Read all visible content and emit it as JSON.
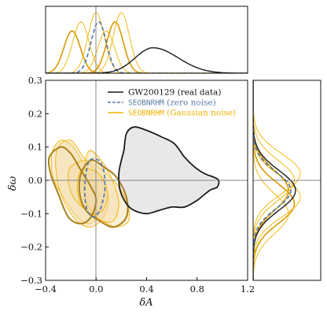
{
  "chart_data": {
    "type": "contour",
    "xlabel": "δA",
    "ylabel": "δω",
    "xlim": [
      -0.4,
      1.2
    ],
    "ylim": [
      -0.3,
      0.3
    ],
    "xticks": [
      {
        "value": -0.4,
        "label": "−0.4"
      },
      {
        "value": 0.0,
        "label": "0.0"
      },
      {
        "value": 0.4,
        "label": "0.4"
      },
      {
        "value": 0.8,
        "label": "0.8"
      },
      {
        "value": 1.2,
        "label": "1.2"
      }
    ],
    "yticks": [
      {
        "value": -0.3,
        "label": "−0.3"
      },
      {
        "value": -0.2,
        "label": "−0.2"
      },
      {
        "value": -0.1,
        "label": "−0.1"
      },
      {
        "value": 0.0,
        "label": "0.0"
      },
      {
        "value": 0.1,
        "label": "0.1"
      },
      {
        "value": 0.2,
        "label": "0.2"
      },
      {
        "value": 0.3,
        "label": "0.3"
      }
    ],
    "reference_lines": {
      "x": 0.0,
      "y": 0.0
    },
    "legend": {
      "placement": "top-right",
      "entries": [
        {
          "label": "GW200129 (real data)",
          "color": "#1a1a1a",
          "style": "solid"
        },
        {
          "label_mono": "SEOBNRHM",
          "label_rest": " (zero noise)",
          "color": "#5b7fa8",
          "style": "dashed"
        },
        {
          "label_mono": "SEOBNRHM",
          "label_rest": " (Gaussian noise)",
          "color": "#f2b200",
          "style": "solid"
        }
      ]
    },
    "series": [
      {
        "name": "GW200129 (real data)",
        "color": "#1a1a1a",
        "fill": "#e8e8e8",
        "dash": false,
        "width": 1.8,
        "contour": [
          [
            0.22,
            0.09
          ],
          [
            0.24,
            0.14
          ],
          [
            0.3,
            0.16
          ],
          [
            0.4,
            0.15
          ],
          [
            0.52,
            0.13
          ],
          [
            0.62,
            0.11
          ],
          [
            0.7,
            0.07
          ],
          [
            0.78,
            0.04
          ],
          [
            0.86,
            0.02
          ],
          [
            0.93,
            0.01
          ],
          [
            0.97,
            0.0
          ],
          [
            0.96,
            -0.02
          ],
          [
            0.9,
            -0.03
          ],
          [
            0.8,
            -0.06
          ],
          [
            0.7,
            -0.08
          ],
          [
            0.6,
            -0.08
          ],
          [
            0.5,
            -0.09
          ],
          [
            0.4,
            -0.1
          ],
          [
            0.3,
            -0.09
          ],
          [
            0.24,
            -0.07
          ],
          [
            0.19,
            -0.03
          ],
          [
            0.18,
            0.02
          ],
          [
            0.2,
            0.06
          ]
        ],
        "x_marginal_peak": 0.45,
        "y_marginal_peak": -0.03
      },
      {
        "name": "SEOBNRHM (zero noise)",
        "color": "#5b7fa8",
        "fill": "none",
        "dash": true,
        "width": 1.8,
        "contour": [
          [
            -0.05,
            0.06
          ],
          [
            0.02,
            0.06
          ],
          [
            0.06,
            0.03
          ],
          [
            0.07,
            -0.02
          ],
          [
            0.06,
            -0.05
          ],
          [
            0.03,
            -0.09
          ],
          [
            -0.02,
            -0.11
          ],
          [
            -0.07,
            -0.09
          ],
          [
            -0.09,
            -0.04
          ],
          [
            -0.08,
            0.02
          ]
        ],
        "x_marginal_peak": 0.02,
        "y_marginal_peak": -0.03
      },
      {
        "name": "SEOBNRHM (Gaussian noise)",
        "color": "#f2b200",
        "fill": "#f1d9a4",
        "dash": false,
        "width": 0.9,
        "contours": [
          [
            [
              -0.35,
              0.08
            ],
            [
              -0.28,
              0.12
            ],
            [
              -0.18,
              0.1
            ],
            [
              -0.1,
              0.05
            ],
            [
              -0.02,
              0.0
            ],
            [
              0.03,
              -0.05
            ],
            [
              0.02,
              -0.1
            ],
            [
              -0.05,
              -0.13
            ],
            [
              -0.15,
              -0.11
            ],
            [
              -0.26,
              -0.05
            ],
            [
              -0.34,
              0.01
            ]
          ],
          [
            [
              -0.3,
              0.1
            ],
            [
              -0.2,
              0.12
            ],
            [
              -0.1,
              0.07
            ],
            [
              0.0,
              0.03
            ],
            [
              0.08,
              -0.02
            ],
            [
              0.1,
              -0.07
            ],
            [
              0.04,
              -0.12
            ],
            [
              -0.06,
              -0.14
            ],
            [
              -0.18,
              -0.11
            ],
            [
              -0.28,
              -0.04
            ],
            [
              -0.32,
              0.04
            ]
          ],
          [
            [
              -0.2,
              0.04
            ],
            [
              -0.08,
              0.06
            ],
            [
              0.05,
              0.03
            ],
            [
              0.16,
              -0.01
            ],
            [
              0.24,
              -0.06
            ],
            [
              0.26,
              -0.12
            ],
            [
              0.16,
              -0.14
            ],
            [
              0.04,
              -0.12
            ],
            [
              -0.08,
              -0.09
            ],
            [
              -0.18,
              -0.05
            ],
            [
              -0.22,
              0.0
            ]
          ],
          [
            [
              -0.05,
              0.09
            ],
            [
              0.06,
              0.05
            ],
            [
              0.14,
              -0.01
            ],
            [
              0.18,
              -0.07
            ],
            [
              0.14,
              -0.12
            ],
            [
              0.04,
              -0.12
            ],
            [
              -0.06,
              -0.08
            ],
            [
              -0.1,
              -0.02
            ],
            [
              -0.09,
              0.04
            ]
          ],
          [
            [
              -0.12,
              0.03
            ],
            [
              -0.02,
              0.03
            ],
            [
              0.06,
              0.0
            ],
            [
              0.09,
              -0.05
            ],
            [
              0.05,
              -0.09
            ],
            [
              -0.04,
              -0.1
            ],
            [
              -0.12,
              -0.07
            ],
            [
              -0.15,
              -0.02
            ]
          ]
        ],
        "x_marginal_peaks": [
          -0.19,
          -0.12,
          0.0,
          0.08,
          0.15,
          0.2
        ],
        "y_marginal_peaks": [
          -0.1,
          -0.07,
          -0.05,
          -0.03,
          0.0,
          0.02
        ]
      }
    ],
    "highlight_contours": [
      {
        "color": "#a9801f",
        "points": [
          [
            -0.37,
            0.07
          ],
          [
            -0.28,
            0.1
          ],
          [
            -0.2,
            0.08
          ],
          [
            -0.12,
            0.03
          ],
          [
            -0.04,
            -0.02
          ],
          [
            0.0,
            -0.06
          ],
          [
            -0.04,
            -0.11
          ],
          [
            -0.12,
            -0.13
          ],
          [
            -0.22,
            -0.11
          ],
          [
            -0.3,
            -0.04
          ],
          [
            -0.36,
            0.02
          ]
        ]
      },
      {
        "color": "#a9801f",
        "points": [
          [
            -0.12,
            0.02
          ],
          [
            -0.04,
            0.06
          ],
          [
            0.06,
            0.04
          ],
          [
            0.16,
            0.01
          ],
          [
            0.24,
            -0.05
          ],
          [
            0.24,
            -0.11
          ],
          [
            0.14,
            -0.14
          ],
          [
            0.02,
            -0.12
          ],
          [
            -0.08,
            -0.09
          ],
          [
            -0.13,
            -0.04
          ]
        ]
      }
    ]
  }
}
